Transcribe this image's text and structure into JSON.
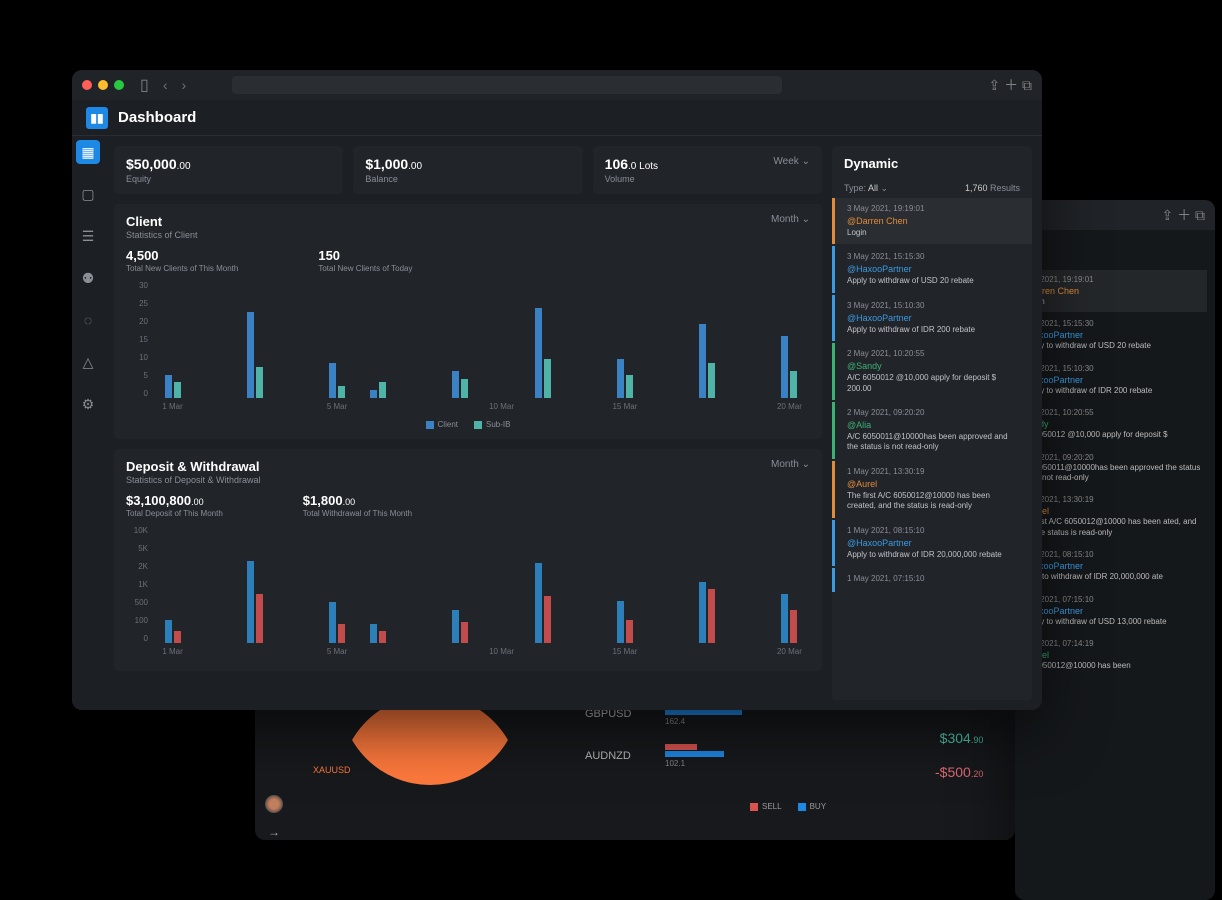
{
  "header": {
    "title": "Dashboard"
  },
  "colors": {
    "client": "#3b82c4",
    "subib": "#4fb3a8",
    "deposit": "#2c7fb8",
    "withdrawal": "#c24b4b",
    "orange": "#ff7a3d",
    "buy": "#1e88e5",
    "sell": "#d9534f",
    "accent_blue": "#3b9ae0",
    "accent_orange": "#e28b3b",
    "accent_green": "#3bb273",
    "green_text": "#4ec9b0",
    "red_text": "#e06c75"
  },
  "stats": [
    {
      "value": "$50,000",
      "dec": ".00",
      "label": "Equity"
    },
    {
      "value": "$1,000",
      "dec": ".00",
      "label": "Balance"
    },
    {
      "value": "106",
      "dec": ".0 Lots",
      "label": "Volume",
      "picker": "Week"
    }
  ],
  "client": {
    "title": "Client",
    "subtitle": "Statistics of Client",
    "picker": "Month",
    "metrics": [
      {
        "value": "4,500",
        "label": "Total New Clients of This Month"
      },
      {
        "value": "150",
        "label": "Total New Clients of Today"
      }
    ],
    "chart": {
      "type": "grouped-bar",
      "y_ticks": [
        "30",
        "25",
        "20",
        "15",
        "10",
        "5",
        "0"
      ],
      "y_max": 30,
      "x_labels": [
        "1 Mar",
        "5 Mar",
        "10 Mar",
        "15 Mar",
        "20 Mar"
      ],
      "series": [
        {
          "name": "Client",
          "color_key": "client"
        },
        {
          "name": "Sub-IB",
          "color_key": "subib"
        }
      ],
      "data": [
        [
          6,
          4
        ],
        [
          0,
          0
        ],
        [
          22,
          8
        ],
        [
          0,
          0
        ],
        [
          9,
          3
        ],
        [
          2,
          4
        ],
        [
          0,
          0
        ],
        [
          7,
          5
        ],
        [
          0,
          0
        ],
        [
          23,
          10
        ],
        [
          0,
          0
        ],
        [
          10,
          6
        ],
        [
          0,
          0
        ],
        [
          19,
          9
        ],
        [
          0,
          0
        ],
        [
          16,
          7
        ]
      ]
    }
  },
  "depwd": {
    "title": "Deposit & Withdrawal",
    "subtitle": "Statistics of Deposit & Withdrawal",
    "picker": "Month",
    "metrics": [
      {
        "value": "$3,100,800",
        "dec": ".00",
        "label": "Total Deposit of This Month"
      },
      {
        "value": "$1,800",
        "dec": ".00",
        "label": "Total Withdrawal of This Month"
      }
    ],
    "chart": {
      "type": "grouped-bar",
      "y_ticks": [
        "10K",
        "5K",
        "2K",
        "1K",
        "500",
        "100",
        "0"
      ],
      "x_labels": [
        "1 Mar",
        "5 Mar",
        "10 Mar",
        "15 Mar",
        "20 Mar"
      ],
      "series": [
        {
          "name": "Deposit",
          "color_key": "deposit"
        },
        {
          "name": "Withdrawal",
          "color_key": "withdrawal"
        }
      ],
      "data_pct": [
        [
          20,
          10
        ],
        [
          0,
          0
        ],
        [
          70,
          42
        ],
        [
          0,
          0
        ],
        [
          35,
          16
        ],
        [
          16,
          10
        ],
        [
          0,
          0
        ],
        [
          28,
          18
        ],
        [
          0,
          0
        ],
        [
          68,
          40
        ],
        [
          0,
          0
        ],
        [
          36,
          20
        ],
        [
          0,
          0
        ],
        [
          52,
          46
        ],
        [
          0,
          0
        ],
        [
          42,
          28
        ]
      ]
    }
  },
  "dynamic": {
    "title": "Dynamic",
    "type_label": "Type:",
    "type_value": "All",
    "results_count": "1,760",
    "results_label": "Results",
    "items": [
      {
        "time": "3 May 2021, 19:19:01",
        "user": "@Darren Chen",
        "color": "accent_orange",
        "msg": "Login",
        "hl": true
      },
      {
        "time": "3 May 2021, 15:15:30",
        "user": "@HaxooPartner",
        "color": "accent_blue",
        "msg": "Apply to withdraw of USD 20 rebate"
      },
      {
        "time": "3 May 2021, 15:10:30",
        "user": "@HaxooPartner",
        "color": "accent_blue",
        "msg": "Apply to withdraw of IDR 200 rebate"
      },
      {
        "time": "2 May 2021, 10:20:55",
        "user": "@Sandy",
        "color": "accent_green",
        "msg": "A/C 6050012 @10,000 apply for deposit $ 200.00"
      },
      {
        "time": "2 May 2021, 09:20:20",
        "user": "@Alia",
        "color": "accent_green",
        "msg": "A/C 6050011@10000has been approved and the status is not read-only"
      },
      {
        "time": "1 May 2021, 13:30:19",
        "user": "@Aurel",
        "color": "accent_orange",
        "msg": "The first A/C 6050012@10000 has been created, and the status is read-only"
      },
      {
        "time": "1 May 2021, 08:15:10",
        "user": "@HaxooPartner",
        "color": "accent_blue",
        "msg": "Apply to withdraw of IDR 20,000,000 rebate"
      },
      {
        "time": "1 May 2021, 07:15:10",
        "user": "",
        "color": "accent_blue",
        "msg": ""
      }
    ]
  },
  "shadow_feed": [
    {
      "time": "y 2021, 19:19:01",
      "user": "arren Chen",
      "color": "accent_orange",
      "msg": "gin",
      "hl": true
    },
    {
      "time": "y 2021, 15:15:30",
      "user": "axooPartner",
      "color": "accent_blue",
      "msg": "ply to withdraw of USD 20 rebate"
    },
    {
      "time": "y 2021, 15:10:30",
      "user": "axooPartner",
      "color": "accent_blue",
      "msg": "ply to withdraw of IDR 200 rebate"
    },
    {
      "time": "y 2021, 10:20:55",
      "user": "ndy",
      "color": "accent_green",
      "msg": "6050012 @10,000 apply for deposit $"
    },
    {
      "time": "y 2021, 09:20:20",
      "user": "",
      "color": "accent_green",
      "msg": "6050011@10000has been approved the status is not read-only"
    },
    {
      "time": "y 2021, 13:30:19",
      "user": "urel",
      "color": "accent_orange",
      "msg": "first A/C 6050012@10000 has been ated, and the status is read-only"
    },
    {
      "time": "y 2021, 08:15:10",
      "user": "axooPartner",
      "color": "accent_blue",
      "msg": "ly to withdraw of IDR 20,000,000 ate"
    },
    {
      "time": "y 2021, 07:15:10",
      "user": "axooPartner",
      "color": "accent_blue",
      "msg": "ply to withdraw of USD 13,000 rebate"
    },
    {
      "time": "y 2021, 07:14:19",
      "user": "urel",
      "color": "accent_green",
      "msg": "6050012@10000 has been"
    }
  ],
  "bottom": {
    "pie_label": "XAUUSD",
    "pairs": [
      {
        "name": "GBPUSD",
        "sell": 40,
        "buy": 85,
        "val": "162.4"
      },
      {
        "name": "AUDNZD",
        "sell": 35,
        "buy": 65,
        "val": "102.1"
      }
    ],
    "values": [
      {
        "text": "$304",
        "dec": ".90",
        "neg": false
      },
      {
        "text": "-$500",
        "dec": ".20",
        "neg": true
      }
    ],
    "legend": [
      {
        "name": "SELL",
        "color_key": "sell"
      },
      {
        "name": "BUY",
        "color_key": "buy"
      }
    ]
  }
}
